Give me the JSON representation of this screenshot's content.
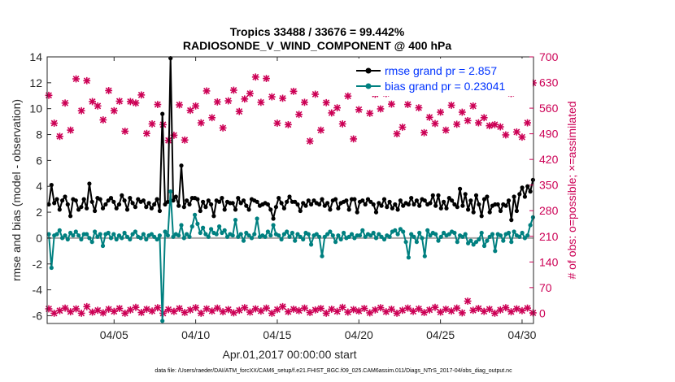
{
  "chart_data": {
    "type": "line",
    "title": "Tropics 33488 / 33676 = 99.442%",
    "subtitle": "RADIOSONDE_V_WIND_COMPONENT @ 400 hPa",
    "xlabel": "Apr.01,2017 00:00:00 start",
    "ylabel": "rmse and bias (model - observation)",
    "y2label": "# of obs: o=possible; ×=assimilated",
    "footer": "data file: /Users/raeder/DAI/ATM_forcXX/CAM6_setup/f.e21.FHIST_BGC.f09_025.CAM6assim.011/Diags_NTrS_2017-04/obs_diag_output.nc",
    "xlim": [
      0.9,
      30.7
    ],
    "ylim": [
      -6.6,
      14
    ],
    "y2lim": [
      -28,
      700
    ],
    "xticks": [
      5,
      10,
      15,
      20,
      25,
      30
    ],
    "xtick_labels": [
      "04/05",
      "04/10",
      "04/15",
      "04/20",
      "04/25",
      "04/30"
    ],
    "yticks": [
      -6,
      -4,
      -2,
      0,
      2,
      4,
      6,
      8,
      10,
      12,
      14
    ],
    "ytick_labels": [
      "-6",
      "-4",
      "-2",
      "0",
      "2",
      "4",
      "6",
      "8",
      "10",
      "12",
      "14"
    ],
    "y2ticks": [
      0,
      70,
      140,
      210,
      280,
      350,
      420,
      490,
      560,
      630,
      700
    ],
    "y2tick_labels": [
      "0",
      "70",
      "140",
      "210",
      "280",
      "350",
      "420",
      "490",
      "560",
      "630",
      "700"
    ],
    "legend": [
      {
        "label": "rmse grand pr = 2.857",
        "color": "#000000"
      },
      {
        "label": "bias grand pr = 0.23041",
        "color": "#008080"
      }
    ],
    "legend_position": "top-right",
    "colors": {
      "rmse": "#000000",
      "bias": "#008080",
      "obs": "#cc0055",
      "zero": "#a6a6a6"
    },
    "series": [
      {
        "name": "rmse",
        "values": [
          2.6,
          4.1,
          2.7,
          3.0,
          2.2,
          2.9,
          3.2,
          2.6,
          1.7,
          3.0,
          2.9,
          2.2,
          2.4,
          3.0,
          2.3,
          4.2,
          2.8,
          2.1,
          3.1,
          3.0,
          2.3,
          2.6,
          2.9,
          3.1,
          2.8,
          2.3,
          2.6,
          3.3,
          2.9,
          2.2,
          3.1,
          2.7,
          2.4,
          3.0,
          2.8,
          2.9,
          2.4,
          2.7,
          2.3,
          2.6,
          3.0,
          2.1,
          9.6,
          2.6,
          2.8,
          13.9,
          2.9,
          3.2,
          2.5,
          5.6,
          2.4,
          2.9,
          2.6,
          3.1,
          3.1,
          3.0,
          2.1,
          2.8,
          2.4,
          2.9,
          2.6,
          1.7,
          2.9,
          2.8,
          3.1,
          2.2,
          2.8,
          2.7,
          2.7,
          2.2,
          3.1,
          2.7,
          2.9,
          2.5,
          2.2,
          3.0,
          2.9,
          2.8,
          2.5,
          2.6,
          2.7,
          2.6,
          2.2,
          1.5,
          2.4,
          3.1,
          2.7,
          2.3,
          2.8,
          3.2,
          2.8,
          2.8,
          2.6,
          2.1,
          2.7,
          2.5,
          2.9,
          2.6,
          2.9,
          2.7,
          2.6,
          3.0,
          2.5,
          2.7,
          2.2,
          2.9,
          3.0,
          2.3,
          2.7,
          2.8,
          2.9,
          2.2,
          3.0,
          3.0,
          2.0,
          2.8,
          2.9,
          2.6,
          3.0,
          2.8,
          2.6,
          2.0,
          2.7,
          2.5,
          3.0,
          2.4,
          2.8,
          2.3,
          2.6,
          2.2,
          2.9,
          2.5,
          2.7,
          2.6,
          3.1,
          2.6,
          2.9,
          2.5,
          3.0,
          2.9,
          2.6,
          2.7,
          3.3,
          2.5,
          3.3,
          2.3,
          2.8,
          2.3,
          3.1,
          2.9,
          2.6,
          2.4,
          3.8,
          2.5,
          3.4,
          2.2,
          2.9,
          2.0,
          3.3,
          2.6,
          1.7,
          3.0,
          3.2,
          2.0,
          2.5,
          2.6,
          2.6,
          2.1,
          2.6,
          2.5,
          2.9,
          1.4,
          3.2,
          2.1,
          3.4,
          3.9,
          3.2,
          4.0,
          3.6,
          4.5
        ]
      },
      {
        "name": "bias",
        "values": [
          0.3,
          -2.3,
          0.2,
          0.3,
          0.6,
          0.0,
          0.2,
          -0.1,
          0.4,
          0.2,
          0.5,
          0.2,
          -0.1,
          0.3,
          0.3,
          0.0,
          -0.3,
          0.5,
          0.1,
          0.3,
          -0.6,
          0.3,
          0.4,
          0.0,
          0.3,
          -0.1,
          0.2,
          0.0,
          0.4,
          0.1,
          -0.1,
          0.3,
          0.5,
          0.1,
          0.0,
          0.3,
          -0.1,
          0.2,
          0.3,
          0.1,
          -0.1,
          0.2,
          -6.4,
          0.5,
          0.2,
          3.6,
          0.1,
          0.3,
          0.2,
          1.0,
          0.0,
          0.3,
          0.1,
          0.9,
          1.8,
          1.1,
          0.4,
          0.8,
          0.3,
          0.1,
          0.7,
          0.4,
          0.3,
          0.9,
          0.4,
          0.6,
          0.1,
          0.3,
          0.2,
          1.4,
          0.1,
          0.3,
          -0.2,
          0.4,
          0.2,
          0.0,
          0.3,
          1.5,
          0.1,
          0.2,
          0.1,
          0.5,
          0.2,
          1.0,
          0.3,
          0.2,
          -0.1,
          0.3,
          0.5,
          0.1,
          0.4,
          -0.2,
          0.3,
          0.1,
          -0.1,
          0.4,
          0.3,
          -0.5,
          0.2,
          0.3,
          0.1,
          -1.4,
          0.1,
          0.3,
          0.5,
          0.2,
          -0.3,
          0.2,
          -0.1,
          0.4,
          0.0,
          0.1,
          0.3,
          0.0,
          0.2,
          0.2,
          0.6,
          0.1,
          0.3,
          0.2,
          0.4,
          0.0,
          0.3,
          0.1,
          -0.1,
          0.2,
          0.1,
          0.5,
          0.6,
          0.3,
          0.7,
          0.5,
          -0.3,
          -1.5,
          0.3,
          0.1,
          -0.3,
          0.4,
          0.0,
          -1.4,
          0.6,
          0.2,
          0.4,
          0.3,
          -0.2,
          0.1,
          0.4,
          0.2,
          0.3,
          0.5,
          0.4,
          -0.3,
          0.2,
          0.1,
          0.3,
          -0.4,
          -0.2,
          -0.5,
          -0.3,
          -0.1,
          0.4,
          -0.6,
          -0.2,
          0.1,
          0.3,
          -1.0,
          0.3,
          0.2,
          -0.2,
          0.3,
          0.4,
          -0.3,
          0.5,
          0.2,
          0.1,
          0.4,
          0.0,
          0.2,
          1.0,
          1.6
        ]
      }
    ],
    "obs_upper": [
      {
        "t": 1.0,
        "n": 595
      },
      {
        "t": 1.33,
        "n": 519
      },
      {
        "t": 1.67,
        "n": 483
      },
      {
        "t": 2.0,
        "n": 574
      },
      {
        "t": 2.33,
        "n": 500
      },
      {
        "t": 2.67,
        "n": 640
      },
      {
        "t": 3.0,
        "n": 553
      },
      {
        "t": 3.33,
        "n": 635
      },
      {
        "t": 3.67,
        "n": 578
      },
      {
        "t": 4.0,
        "n": 566
      },
      {
        "t": 4.33,
        "n": 528
      },
      {
        "t": 4.67,
        "n": 608
      },
      {
        "t": 5.0,
        "n": 553
      },
      {
        "t": 5.33,
        "n": 579
      },
      {
        "t": 5.67,
        "n": 497
      },
      {
        "t": 6.0,
        "n": 578
      },
      {
        "t": 6.33,
        "n": 574
      },
      {
        "t": 6.67,
        "n": 596
      },
      {
        "t": 7.0,
        "n": 491
      },
      {
        "t": 7.33,
        "n": 517
      },
      {
        "t": 7.67,
        "n": 570
      },
      {
        "t": 8.0,
        "n": 515
      },
      {
        "t": 8.33,
        "n": 472
      },
      {
        "t": 8.67,
        "n": 486
      },
      {
        "t": 9.0,
        "n": 569
      },
      {
        "t": 9.33,
        "n": 473
      },
      {
        "t": 9.67,
        "n": 554
      },
      {
        "t": 10.0,
        "n": 566
      },
      {
        "t": 10.33,
        "n": 520
      },
      {
        "t": 10.67,
        "n": 607
      },
      {
        "t": 11.0,
        "n": 534
      },
      {
        "t": 11.33,
        "n": 577
      },
      {
        "t": 11.67,
        "n": 506
      },
      {
        "t": 12.0,
        "n": 580
      },
      {
        "t": 12.33,
        "n": 609
      },
      {
        "t": 12.67,
        "n": 551
      },
      {
        "t": 13.0,
        "n": 585
      },
      {
        "t": 13.33,
        "n": 600
      },
      {
        "t": 13.67,
        "n": 645
      },
      {
        "t": 14.0,
        "n": 576
      },
      {
        "t": 14.33,
        "n": 641
      },
      {
        "t": 14.67,
        "n": 591
      },
      {
        "t": 15.0,
        "n": 519
      },
      {
        "t": 15.33,
        "n": 587
      },
      {
        "t": 15.67,
        "n": 515
      },
      {
        "t": 16.0,
        "n": 606
      },
      {
        "t": 16.33,
        "n": 543
      },
      {
        "t": 16.67,
        "n": 576
      },
      {
        "t": 17.0,
        "n": 470
      },
      {
        "t": 17.33,
        "n": 598
      },
      {
        "t": 17.67,
        "n": 500
      },
      {
        "t": 18.0,
        "n": 575
      },
      {
        "t": 18.33,
        "n": 547
      },
      {
        "t": 18.67,
        "n": 561
      },
      {
        "t": 19.0,
        "n": 517
      },
      {
        "t": 19.33,
        "n": 593
      },
      {
        "t": 19.67,
        "n": 476
      },
      {
        "t": 20.0,
        "n": 556
      },
      {
        "t": 20.33,
        "n": 617
      },
      {
        "t": 20.67,
        "n": 546
      },
      {
        "t": 21.0,
        "n": 598
      },
      {
        "t": 21.33,
        "n": 558
      },
      {
        "t": 21.67,
        "n": 600
      },
      {
        "t": 22.0,
        "n": 571
      },
      {
        "t": 22.33,
        "n": 490
      },
      {
        "t": 22.67,
        "n": 508
      },
      {
        "t": 23.0,
        "n": 570
      },
      {
        "t": 23.33,
        "n": 628
      },
      {
        "t": 23.67,
        "n": 561
      },
      {
        "t": 24.0,
        "n": 493
      },
      {
        "t": 24.33,
        "n": 535
      },
      {
        "t": 24.67,
        "n": 518
      },
      {
        "t": 25.0,
        "n": 549
      },
      {
        "t": 25.33,
        "n": 500
      },
      {
        "t": 25.67,
        "n": 568
      },
      {
        "t": 26.0,
        "n": 516
      },
      {
        "t": 26.33,
        "n": 549
      },
      {
        "t": 26.67,
        "n": 526
      },
      {
        "t": 27.0,
        "n": 566
      },
      {
        "t": 27.33,
        "n": 520
      },
      {
        "t": 27.67,
        "n": 534
      },
      {
        "t": 28.0,
        "n": 512
      },
      {
        "t": 28.33,
        "n": 515
      },
      {
        "t": 28.67,
        "n": 509
      },
      {
        "t": 29.0,
        "n": 487
      },
      {
        "t": 29.33,
        "n": 600
      },
      {
        "t": 29.67,
        "n": 495
      },
      {
        "t": 30.0,
        "n": 481
      },
      {
        "t": 30.33,
        "n": 520
      },
      {
        "t": 30.67,
        "n": 629
      }
    ],
    "obs_lower": [
      {
        "t": 1.0,
        "n": 12
      },
      {
        "t": 1.33,
        "n": 0
      },
      {
        "t": 1.67,
        "n": 7
      },
      {
        "t": 2.0,
        "n": 14
      },
      {
        "t": 2.33,
        "n": 4
      },
      {
        "t": 2.67,
        "n": 12
      },
      {
        "t": 3.0,
        "n": 0
      },
      {
        "t": 3.33,
        "n": 18
      },
      {
        "t": 3.67,
        "n": 3
      },
      {
        "t": 4.0,
        "n": 8
      },
      {
        "t": 4.33,
        "n": 1
      },
      {
        "t": 4.67,
        "n": 11
      },
      {
        "t": 5.0,
        "n": 5
      },
      {
        "t": 5.33,
        "n": 13
      },
      {
        "t": 5.67,
        "n": 0
      },
      {
        "t": 6.0,
        "n": 9
      },
      {
        "t": 6.33,
        "n": 16
      },
      {
        "t": 6.67,
        "n": 2
      },
      {
        "t": 7.0,
        "n": 11
      },
      {
        "t": 7.33,
        "n": 6
      },
      {
        "t": 7.67,
        "n": 15
      },
      {
        "t": 8.0,
        "n": 0
      },
      {
        "t": 8.33,
        "n": 10
      },
      {
        "t": 8.67,
        "n": 5
      },
      {
        "t": 9.0,
        "n": 13
      },
      {
        "t": 9.33,
        "n": 2
      },
      {
        "t": 9.67,
        "n": 9
      },
      {
        "t": 10.0,
        "n": 15
      },
      {
        "t": 10.33,
        "n": 0
      },
      {
        "t": 10.67,
        "n": 12
      },
      {
        "t": 11.0,
        "n": 6
      },
      {
        "t": 11.33,
        "n": 14
      },
      {
        "t": 11.67,
        "n": 4
      },
      {
        "t": 12.0,
        "n": 10
      },
      {
        "t": 12.33,
        "n": 1
      },
      {
        "t": 12.67,
        "n": 8
      },
      {
        "t": 13.0,
        "n": 15
      },
      {
        "t": 13.33,
        "n": 3
      },
      {
        "t": 13.67,
        "n": 12
      },
      {
        "t": 14.0,
        "n": 6
      },
      {
        "t": 14.33,
        "n": 14
      },
      {
        "t": 14.67,
        "n": 0
      },
      {
        "t": 15.0,
        "n": 10
      },
      {
        "t": 15.33,
        "n": 18
      },
      {
        "t": 15.67,
        "n": 4
      },
      {
        "t": 16.0,
        "n": 11
      },
      {
        "t": 16.33,
        "n": 7
      },
      {
        "t": 16.67,
        "n": 14
      },
      {
        "t": 17.0,
        "n": 2
      },
      {
        "t": 17.33,
        "n": 9
      },
      {
        "t": 17.67,
        "n": 13
      },
      {
        "t": 18.0,
        "n": 0
      },
      {
        "t": 18.33,
        "n": 11
      },
      {
        "t": 18.67,
        "n": 5
      },
      {
        "t": 19.0,
        "n": 16
      },
      {
        "t": 19.33,
        "n": 3
      },
      {
        "t": 19.67,
        "n": 10
      },
      {
        "t": 20.0,
        "n": 6
      },
      {
        "t": 20.33,
        "n": 13
      },
      {
        "t": 20.67,
        "n": 1
      },
      {
        "t": 21.0,
        "n": 9
      },
      {
        "t": 21.33,
        "n": 15
      },
      {
        "t": 21.67,
        "n": 4
      },
      {
        "t": 22.0,
        "n": 11
      },
      {
        "t": 22.33,
        "n": 0
      },
      {
        "t": 22.67,
        "n": 8
      },
      {
        "t": 23.0,
        "n": 14
      },
      {
        "t": 23.33,
        "n": 5
      },
      {
        "t": 23.67,
        "n": 12
      },
      {
        "t": 24.0,
        "n": 2
      },
      {
        "t": 24.33,
        "n": 9
      },
      {
        "t": 24.67,
        "n": 16
      },
      {
        "t": 25.0,
        "n": 3
      },
      {
        "t": 25.33,
        "n": 11
      },
      {
        "t": 25.67,
        "n": 6
      },
      {
        "t": 26.0,
        "n": 14
      },
      {
        "t": 26.33,
        "n": 1
      },
      {
        "t": 26.67,
        "n": 33
      },
      {
        "t": 27.0,
        "n": 8
      },
      {
        "t": 27.33,
        "n": 13
      },
      {
        "t": 27.67,
        "n": 5
      },
      {
        "t": 28.0,
        "n": 11
      },
      {
        "t": 28.33,
        "n": 0
      },
      {
        "t": 28.67,
        "n": 9
      },
      {
        "t": 29.0,
        "n": 15
      },
      {
        "t": 29.33,
        "n": 4
      },
      {
        "t": 29.67,
        "n": 12
      },
      {
        "t": 30.0,
        "n": 7
      },
      {
        "t": 30.33,
        "n": 14
      },
      {
        "t": 30.67,
        "n": 1
      }
    ]
  }
}
